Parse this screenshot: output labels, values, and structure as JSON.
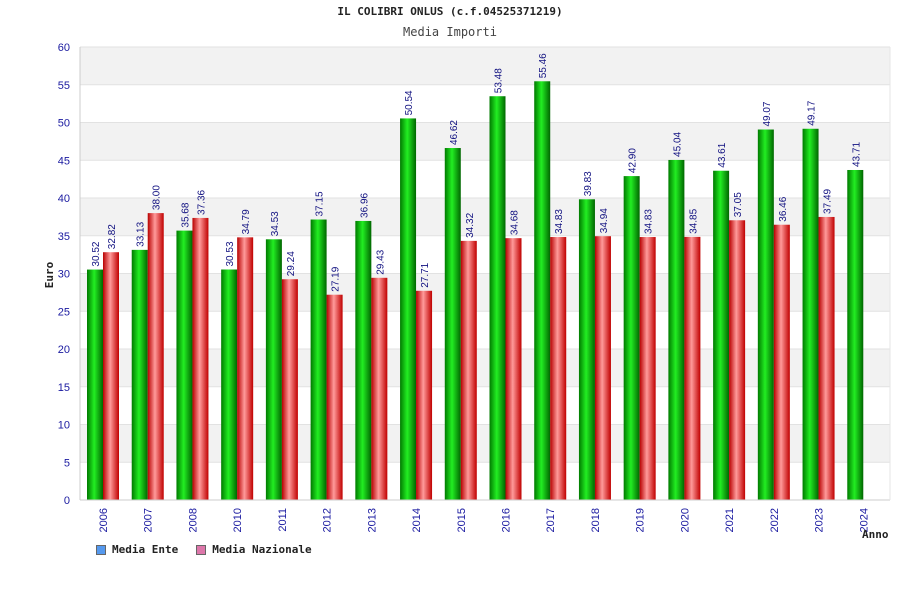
{
  "chart_data": {
    "type": "bar",
    "title": "IL COLIBRI ONLUS (c.f.04525371219)",
    "subtitle": "Media Importi",
    "ylabel": "Euro",
    "xlabel": "Anno",
    "ylim": [
      0,
      60
    ],
    "yticks": [
      0,
      5,
      10,
      15,
      20,
      25,
      30,
      35,
      40,
      45,
      50,
      55,
      60
    ],
    "categories": [
      "2006",
      "2007",
      "2008",
      "2010",
      "2011",
      "2012",
      "2013",
      "2014",
      "2015",
      "2016",
      "2017",
      "2018",
      "2019",
      "2020",
      "2021",
      "2022",
      "2023",
      "2024"
    ],
    "series": [
      {
        "name": "Media Ente",
        "color": "#00aa00",
        "legend_color": "#5599ee",
        "values": [
          30.52,
          33.13,
          35.68,
          30.53,
          34.53,
          37.15,
          36.96,
          50.54,
          46.62,
          53.48,
          55.46,
          39.83,
          42.9,
          45.04,
          43.61,
          49.07,
          49.17,
          43.71
        ]
      },
      {
        "name": "Media Nazionale",
        "color": "#dd2222",
        "legend_color": "#dd77aa",
        "values": [
          32.82,
          38.0,
          37.36,
          34.79,
          29.24,
          27.19,
          29.43,
          27.71,
          34.32,
          34.68,
          34.83,
          34.94,
          34.83,
          34.85,
          37.05,
          36.46,
          37.49,
          null
        ]
      }
    ]
  }
}
